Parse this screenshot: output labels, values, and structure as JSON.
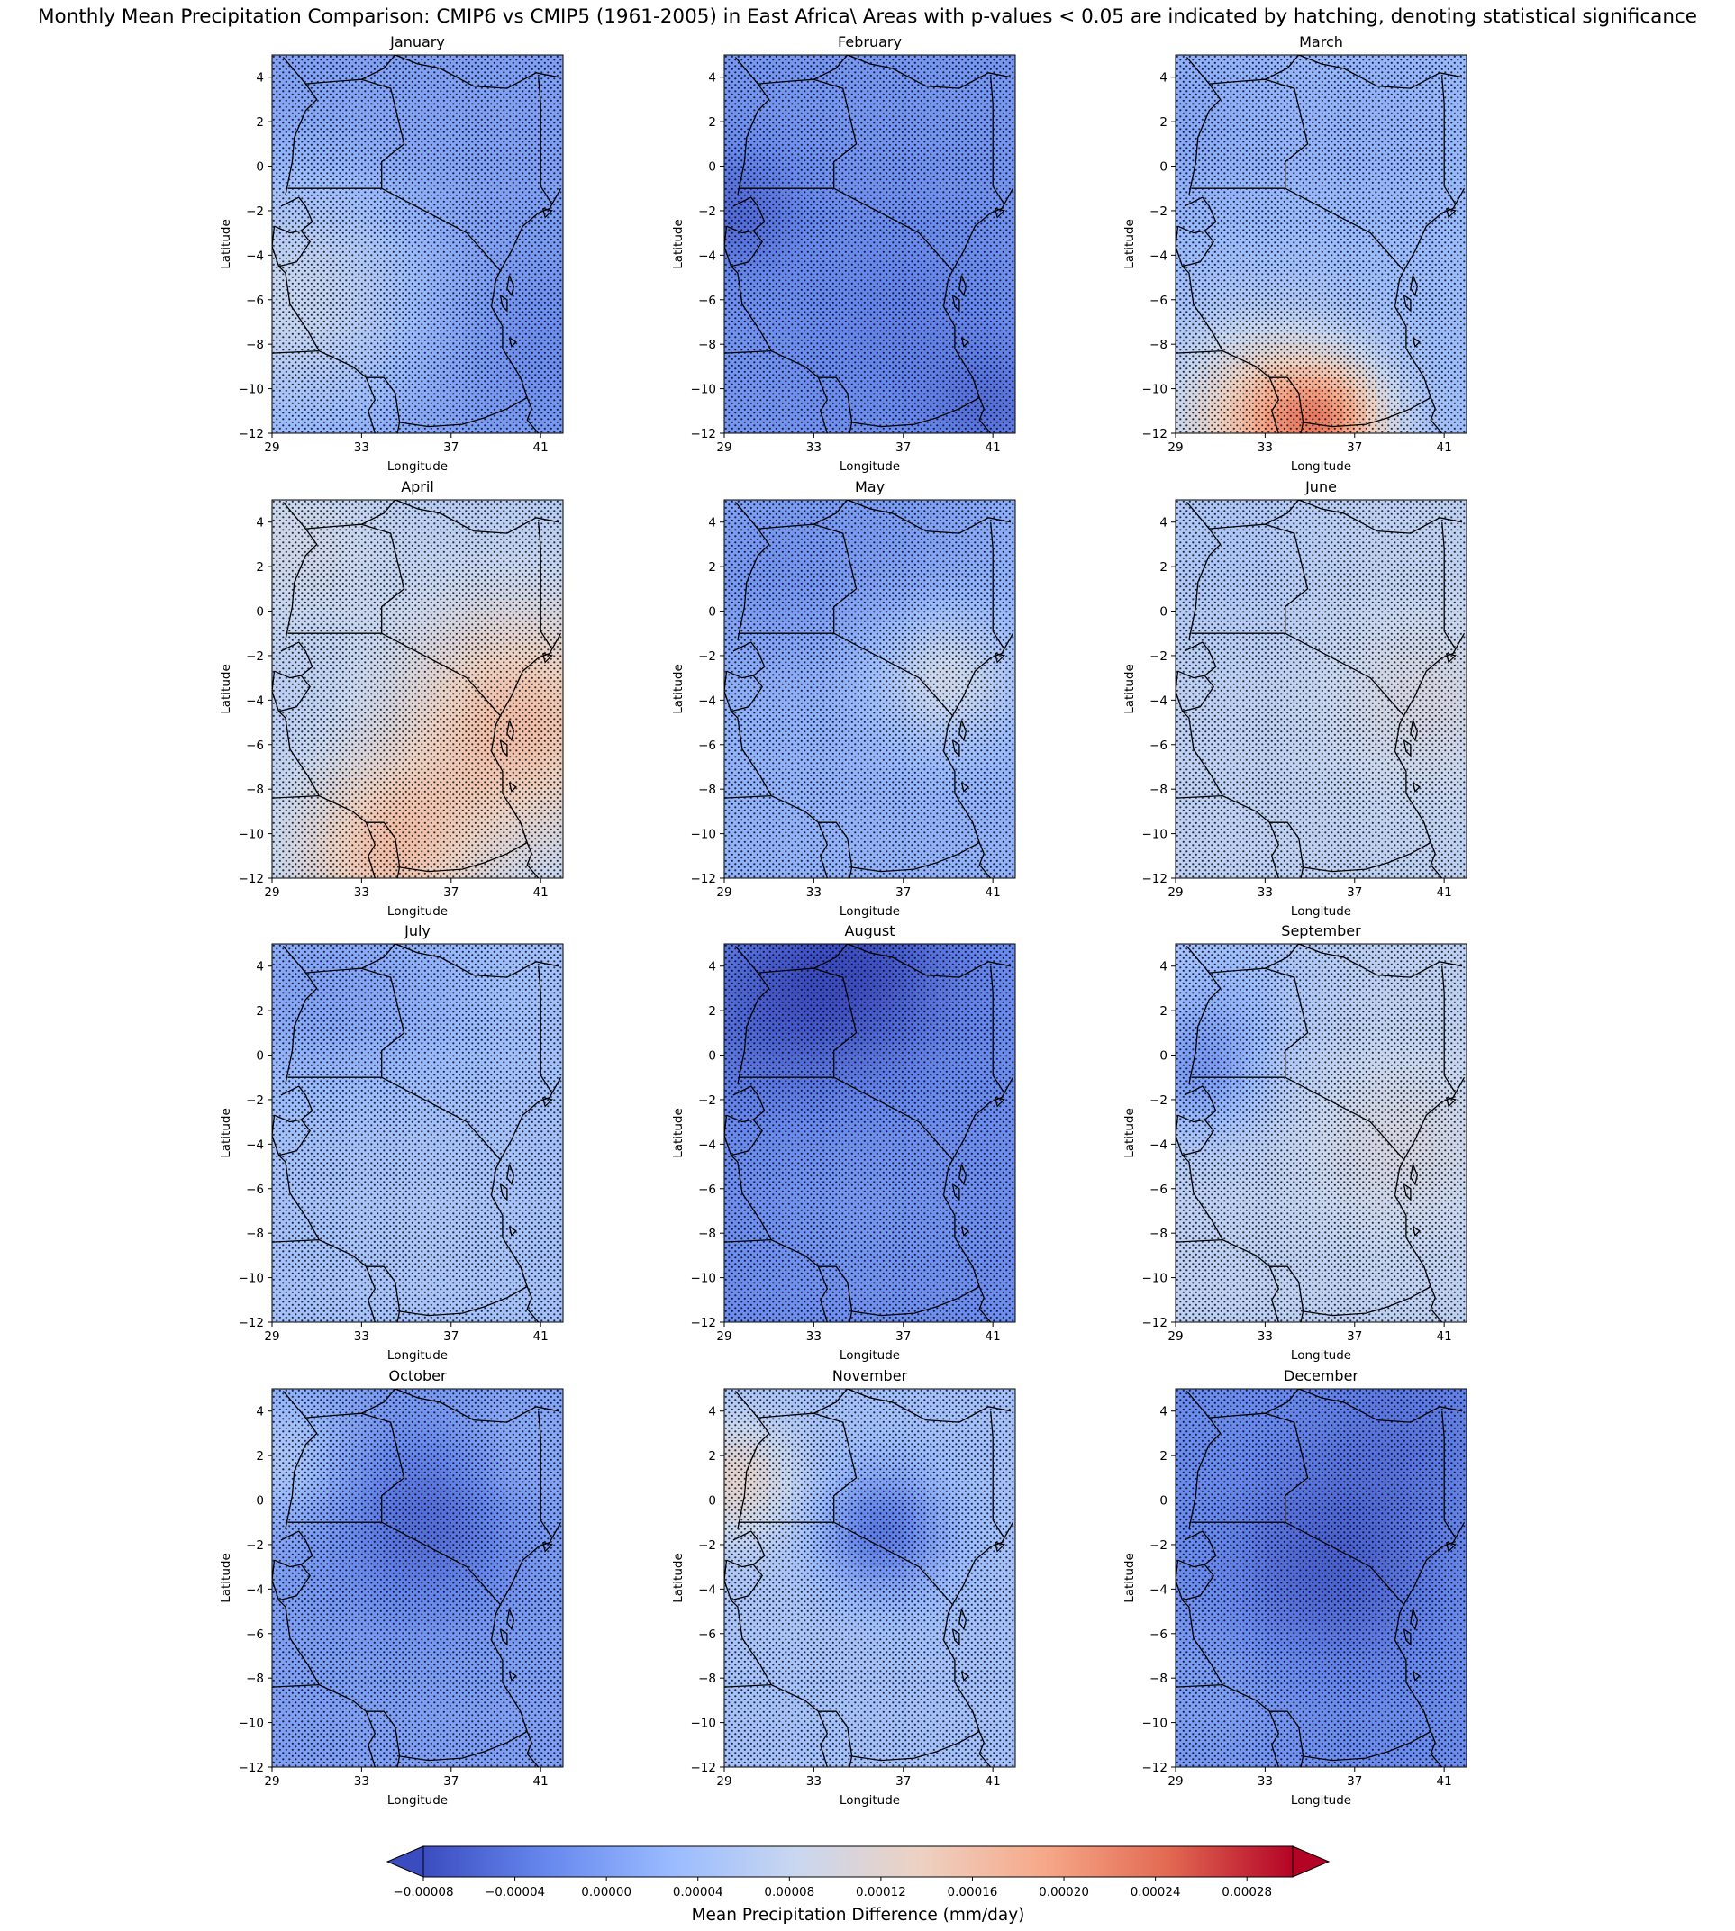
{
  "title": "Monthly Mean Precipitation Comparison: CMIP6 vs CMIP5 (1961-2005) in East Africa\\ Areas with p-values < 0.05 are indicated by hatching, denoting statistical significance",
  "colors": {
    "cmap": [
      "#3b4cc0",
      "#6788ee",
      "#9abbff",
      "#c9d7f0",
      "#edd1c2",
      "#f7a889",
      "#e26952",
      "#b40426"
    ],
    "border": "#000000",
    "hatch": "#000000"
  },
  "chart_data": {
    "type": "heatmap",
    "variable": "Mean Precipitation Difference (mm/day)",
    "colorbar": {
      "label": "Mean Precipitation Difference (mm/day)",
      "range": [
        -8e-05,
        0.0003
      ],
      "ticks": [
        "−0.00008",
        "−0.00004",
        "0.00000",
        "0.00004",
        "0.00008",
        "0.00012",
        "0.00016",
        "0.00020",
        "0.00024",
        "0.00028"
      ],
      "tick_values": [
        -8e-05,
        -4e-05,
        0.0,
        4e-05,
        8e-05,
        0.00012,
        0.00016,
        0.0002,
        0.00024,
        0.00028
      ],
      "extend": "both"
    },
    "xlabel": "Longitude",
    "ylabel": "Latitude",
    "xlim": [
      29,
      42
    ],
    "ylim": [
      -12,
      5
    ],
    "xticks": [
      "29",
      "33",
      "37",
      "41"
    ],
    "yticks": [
      "4",
      "2",
      "0",
      "−2",
      "−4",
      "−6",
      "−8",
      "−10",
      "−12"
    ],
    "hatching": "p < 0.05 (dots)",
    "panels": [
      {
        "month": "January",
        "base": 0.0,
        "blobs": [
          [
            30,
            -6,
            8e-05,
            4
          ],
          [
            41,
            -8,
            -2e-05,
            3
          ]
        ]
      },
      {
        "month": "February",
        "base": -1e-05,
        "blobs": [
          [
            29.5,
            -2,
            -4e-05,
            2
          ],
          [
            37,
            -7,
            -2e-05,
            4
          ],
          [
            41,
            -11,
            -3e-05,
            2
          ]
        ]
      },
      {
        "month": "March",
        "base": 3e-05,
        "blobs": [
          [
            33,
            -11.5,
            0.00013,
            3
          ],
          [
            36,
            -11.5,
            0.00011,
            2
          ],
          [
            29,
            2,
            -2e-05,
            3
          ],
          [
            38,
            2,
            -1e-05,
            3
          ]
        ]
      },
      {
        "month": "April",
        "base": 6e-05,
        "blobs": [
          [
            40,
            -5,
            0.0001,
            4
          ],
          [
            34,
            -11,
            9e-05,
            3
          ],
          [
            30,
            3,
            3e-05,
            3
          ]
        ]
      },
      {
        "month": "May",
        "base": 2e-05,
        "blobs": [
          [
            39,
            -3,
            7e-05,
            2
          ],
          [
            31,
            2,
            -3e-05,
            3
          ],
          [
            37,
            4,
            -2e-05,
            3
          ]
        ]
      },
      {
        "month": "June",
        "base": 7e-05,
        "blobs": [
          [
            40,
            -4,
            3e-05,
            3
          ],
          [
            31,
            3,
            -2e-05,
            3
          ]
        ]
      },
      {
        "month": "July",
        "base": 4e-05,
        "blobs": [
          [
            30,
            3,
            -3e-05,
            3
          ],
          [
            35,
            3,
            -2e-05,
            3
          ],
          [
            36,
            -8,
            1e-05,
            3
          ]
        ]
      },
      {
        "month": "August",
        "base": -2e-05,
        "blobs": [
          [
            35,
            4,
            -5e-05,
            3
          ],
          [
            31,
            2,
            -3e-05,
            3
          ],
          [
            35,
            -7,
            1e-05,
            3
          ]
        ]
      },
      {
        "month": "September",
        "base": 7e-05,
        "blobs": [
          [
            30,
            -1,
            -6e-05,
            2
          ],
          [
            31,
            3,
            -4e-05,
            3
          ],
          [
            39,
            -4,
            3e-05,
            3
          ]
        ]
      },
      {
        "month": "October",
        "base": 0.0,
        "blobs": [
          [
            36,
            -1,
            -5e-05,
            3
          ],
          [
            29.5,
            2,
            5e-05,
            2
          ],
          [
            40,
            2,
            2e-05,
            2
          ]
        ]
      },
      {
        "month": "November",
        "base": 4e-05,
        "blobs": [
          [
            36,
            -1.5,
            -8e-05,
            2
          ],
          [
            29.5,
            1,
            8e-05,
            2
          ],
          [
            32,
            -4,
            1e-05,
            3
          ]
        ]
      },
      {
        "month": "December",
        "base": -2e-05,
        "blobs": [
          [
            36,
            -3,
            -4e-05,
            3
          ],
          [
            30,
            -9,
            2e-05,
            3
          ],
          [
            39,
            3,
            -2e-05,
            3
          ]
        ]
      }
    ]
  }
}
